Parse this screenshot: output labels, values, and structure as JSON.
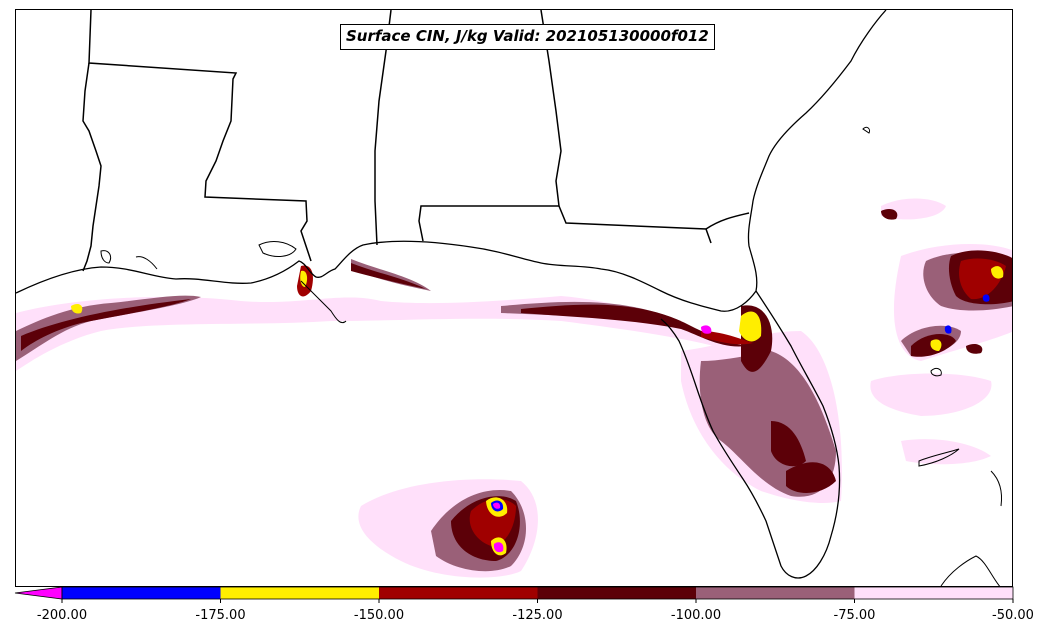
{
  "title": "Surface CIN, J/kg Valid: 202105130000f012",
  "colorbar": {
    "ticks": [
      "-200.00",
      "-175.00",
      "-150.00",
      "-125.00",
      "-100.00",
      "-75.00",
      "-50.00"
    ],
    "bins": [
      {
        "from": -225,
        "to": -200,
        "color": "#ff00ff"
      },
      {
        "from": -200,
        "to": -175,
        "color": "#0000ff"
      },
      {
        "from": -175,
        "to": -150,
        "color": "#ffee00"
      },
      {
        "from": -150,
        "to": -125,
        "color": "#a00000"
      },
      {
        "from": -125,
        "to": -100,
        "color": "#5c0008"
      },
      {
        "from": -100,
        "to": -75,
        "color": "#9a6078"
      },
      {
        "from": -75,
        "to": -50,
        "color": "#ffe0fa"
      }
    ],
    "extend": "min"
  }
}
